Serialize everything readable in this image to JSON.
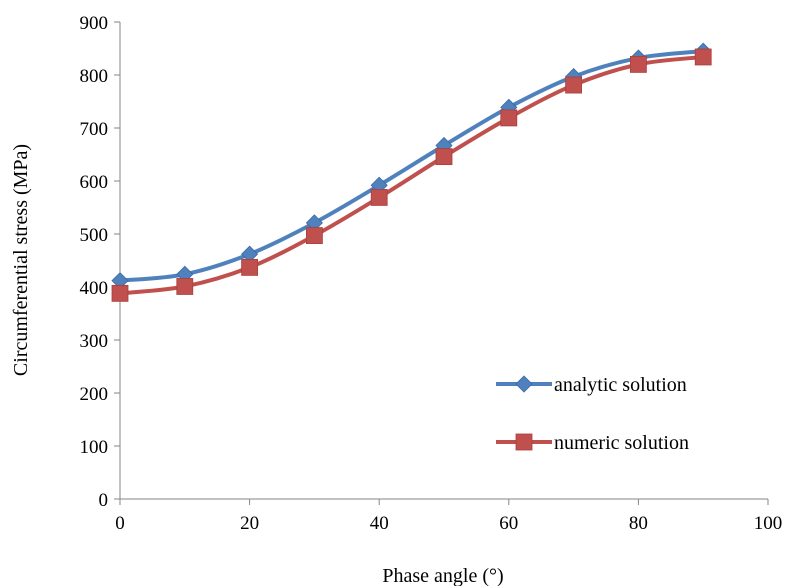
{
  "chart_data": {
    "type": "line",
    "title": "",
    "xlabel": "Phase angle (°)",
    "ylabel": "Circumferential stress (MPa)",
    "xlim": [
      0,
      100
    ],
    "ylim": [
      0,
      900
    ],
    "x_ticks": [
      "0",
      "20",
      "40",
      "60",
      "80",
      "100"
    ],
    "y_ticks": [
      "0",
      "100",
      "200",
      "300",
      "400",
      "500",
      "600",
      "700",
      "800",
      "900"
    ],
    "grid": false,
    "legend_position": "bottom-right",
    "x": [
      0,
      10,
      20,
      30,
      40,
      50,
      60,
      70,
      80,
      90
    ],
    "series": [
      {
        "name": "analytic solution",
        "color": "#4f81bd",
        "marker": "diamond",
        "values": [
          412,
          424,
          462,
          521,
          592,
          667,
          739,
          797,
          832,
          845
        ]
      },
      {
        "name": "numeric solution",
        "color": "#c0504d",
        "marker": "square",
        "values": [
          388,
          401,
          437,
          497,
          569,
          646,
          719,
          781,
          820,
          834
        ]
      }
    ]
  }
}
